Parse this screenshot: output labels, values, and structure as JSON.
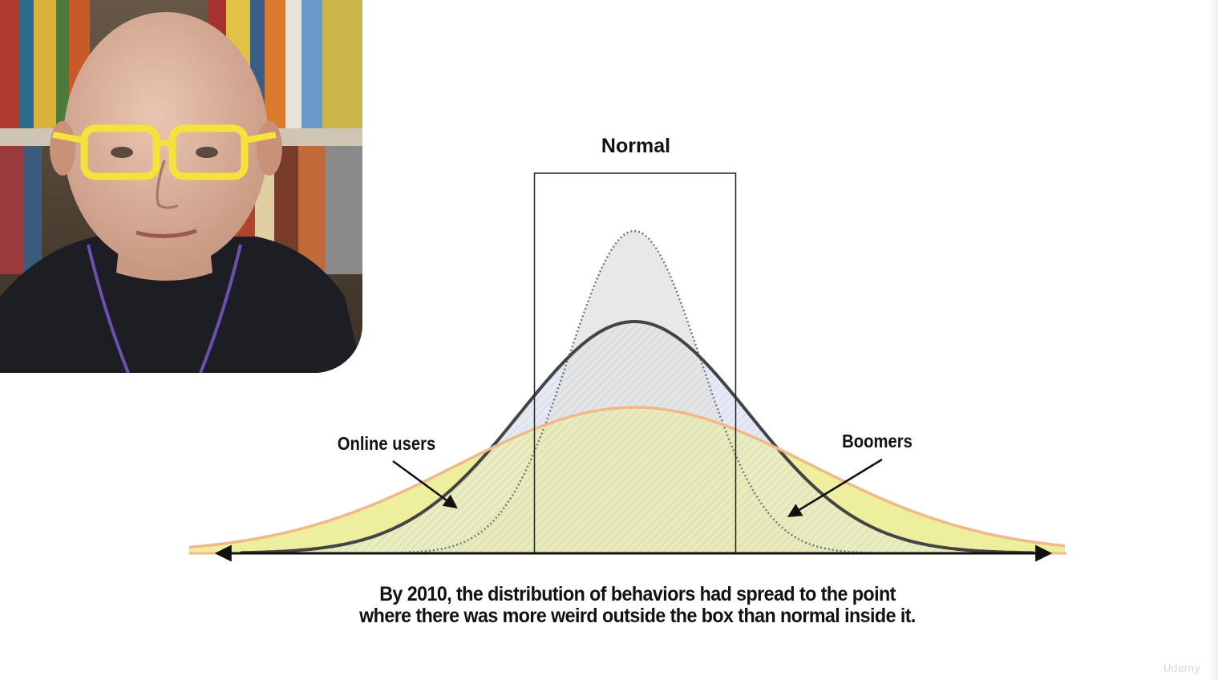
{
  "diagram": {
    "box_title": "Normal",
    "label_left": "Online users",
    "label_right": "Boomers",
    "caption_line1": "By 2010, the distribution of behaviors had spread to the point",
    "caption_line2": "where there was more weird outside the box than normal inside it."
  },
  "watermark": "Udemy",
  "colors": {
    "narrow_curve_fill": "#e2e2e2",
    "middle_curve_fill": "#dfe6f3",
    "wide_curve_fill": "#eeef9c",
    "wide_curve_stroke": "#f0b98a",
    "middle_curve_stroke": "#444444"
  },
  "presenter": {
    "glasses_color": "#f5e23a",
    "shirt_color": "#1d1e24"
  }
}
